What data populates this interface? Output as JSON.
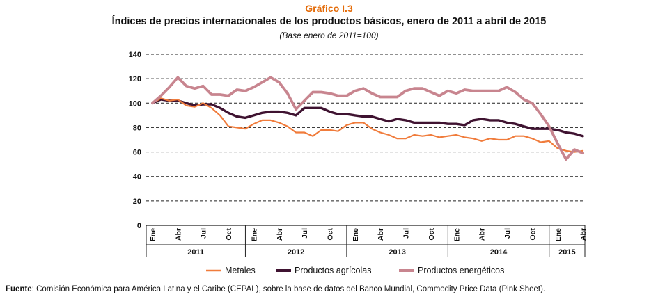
{
  "header": {
    "label": "Gráfico I.3",
    "title": "Índices de precios internacionales de los productos básicos, enero de 2011 a abril de 2015",
    "subtitle": "(Base enero de 2011=100)"
  },
  "source": {
    "label": "Fuente",
    "text": ": Comisión Económica para América Latina y el Caribe (CEPAL), sobre la base de datos del Banco Mundial, Commodity Price Data (Pink Sheet)."
  },
  "chart_data": {
    "type": "line",
    "ylim": [
      0,
      140
    ],
    "yticks": [
      0,
      20,
      40,
      60,
      80,
      100,
      120,
      140
    ],
    "grid": "horizontal-dashed",
    "legend_position": "bottom",
    "month_ticks": [
      {
        "index": 0,
        "label": "Ene"
      },
      {
        "index": 3,
        "label": "Abr"
      },
      {
        "index": 6,
        "label": "Jul"
      },
      {
        "index": 9,
        "label": "Oct"
      },
      {
        "index": 12,
        "label": "Ene"
      },
      {
        "index": 15,
        "label": "Abr"
      },
      {
        "index": 18,
        "label": "Jul"
      },
      {
        "index": 21,
        "label": "Oct"
      },
      {
        "index": 24,
        "label": "Ene"
      },
      {
        "index": 27,
        "label": "Abr"
      },
      {
        "index": 30,
        "label": "Jul"
      },
      {
        "index": 33,
        "label": "Oct"
      },
      {
        "index": 36,
        "label": "Ene"
      },
      {
        "index": 39,
        "label": "Abr"
      },
      {
        "index": 42,
        "label": "Jul"
      },
      {
        "index": 45,
        "label": "Oct"
      },
      {
        "index": 48,
        "label": "Ene"
      },
      {
        "index": 51,
        "label": "Abr"
      }
    ],
    "years": [
      {
        "label": "2011",
        "start": 0,
        "months": 12
      },
      {
        "label": "2012",
        "start": 12,
        "months": 12
      },
      {
        "label": "2013",
        "start": 24,
        "months": 12
      },
      {
        "label": "2014",
        "start": 36,
        "months": 12
      },
      {
        "label": "2015",
        "start": 48,
        "months": 4
      }
    ],
    "series": [
      {
        "name": "Metales",
        "color": "#f07c3c",
        "values": [
          100,
          104,
          102,
          103,
          98,
          97,
          100,
          96,
          90,
          81,
          80,
          79,
          83,
          86,
          86,
          84,
          81,
          76,
          76,
          73,
          78,
          78,
          77,
          82,
          84,
          84,
          79,
          76,
          74,
          71,
          71,
          74,
          73,
          74,
          72,
          73,
          74,
          72,
          71,
          69,
          71,
          70,
          70,
          73,
          73,
          71,
          68,
          69,
          63,
          61,
          60,
          61
        ]
      },
      {
        "name": "Productos agrícolas",
        "color": "#3f1331",
        "values": [
          100,
          103,
          102,
          102,
          100,
          98,
          99,
          99,
          96,
          92,
          89,
          88,
          90,
          92,
          93,
          93,
          92,
          90,
          96,
          96,
          96,
          93,
          91,
          91,
          90,
          89,
          89,
          87,
          85,
          87,
          86,
          84,
          84,
          84,
          84,
          83,
          83,
          82,
          86,
          87,
          86,
          86,
          84,
          83,
          81,
          79,
          79,
          79,
          78,
          76,
          75,
          73
        ]
      },
      {
        "name": "Productos energéticos",
        "color": "#c8858f",
        "values": [
          100,
          106,
          113,
          121,
          114,
          112,
          114,
          107,
          107,
          106,
          111,
          110,
          113,
          117,
          121,
          117,
          108,
          95,
          102,
          109,
          109,
          108,
          106,
          106,
          110,
          112,
          108,
          105,
          105,
          105,
          110,
          112,
          112,
          109,
          106,
          110,
          108,
          111,
          110,
          110,
          110,
          110,
          113,
          109,
          103,
          100,
          91,
          81,
          67,
          54,
          62,
          59
        ]
      }
    ]
  }
}
